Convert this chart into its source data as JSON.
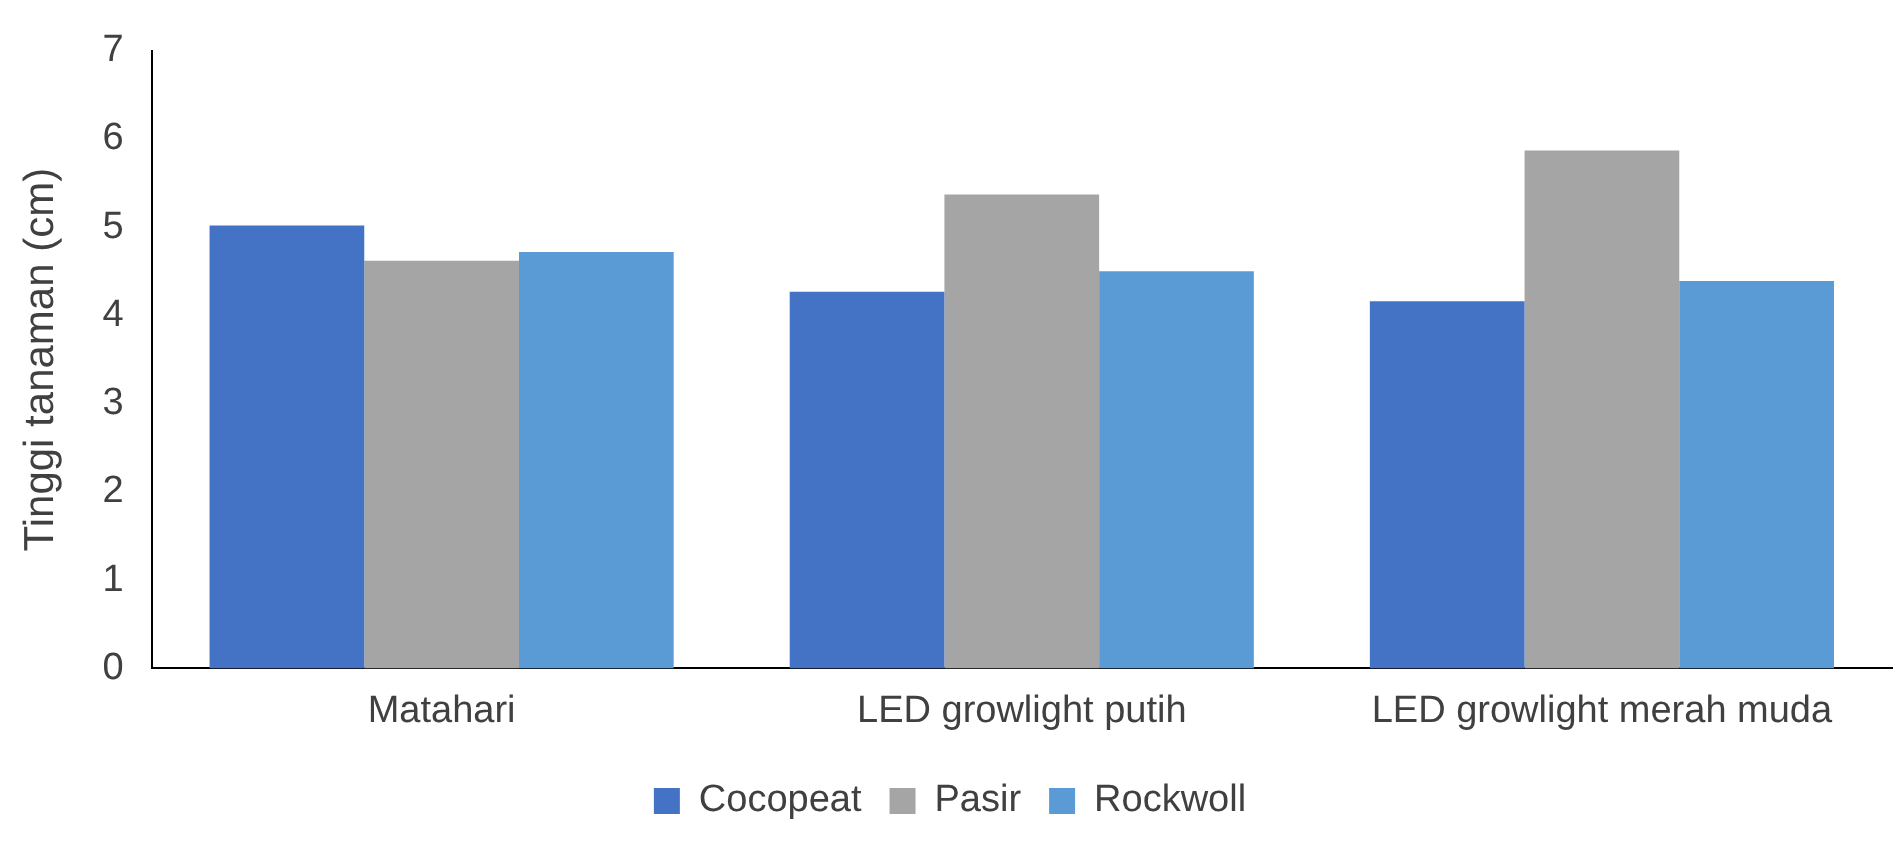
{
  "chart_data": {
    "type": "bar",
    "ylabel": "Tinggi tanaman (cm)",
    "categories": [
      "Matahari",
      "LED growlight putih",
      "LED growlight merah muda"
    ],
    "series": [
      {
        "name": "Cocopeat",
        "color": "#4472c4",
        "values": [
          5.02,
          4.27,
          4.16
        ]
      },
      {
        "name": "Pasir",
        "color": "#a5a5a5",
        "values": [
          4.62,
          5.37,
          5.87
        ]
      },
      {
        "name": "Rockwoll",
        "color": "#5b9bd5",
        "values": [
          4.72,
          4.5,
          4.39
        ]
      }
    ],
    "ylim": [
      0,
      7
    ],
    "yticks": [
      0,
      1,
      2,
      3,
      4,
      5,
      6,
      7
    ],
    "grid": false,
    "legend": "bottom"
  }
}
